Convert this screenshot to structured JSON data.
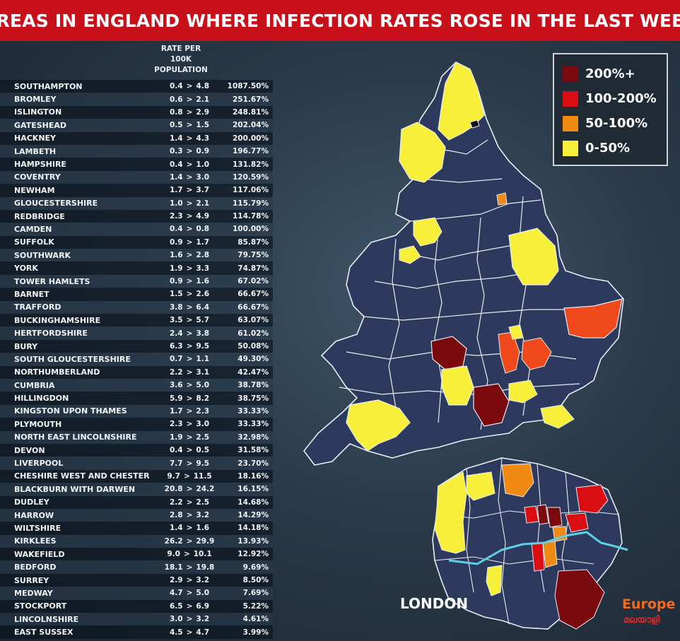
{
  "title": "AREAS IN ENGLAND WHERE INFECTION RATES ROSE IN THE LAST WEEK",
  "rate_header": [
    "RATE PER",
    "100K",
    "POPULATION"
  ],
  "rows": [
    {
      "area": "SOUTHAMPTON",
      "from": "0.4",
      "to": "4.8",
      "pct": "1087.50%"
    },
    {
      "area": "BROMLEY",
      "from": "0.6",
      "to": "2.1",
      "pct": "251.67%"
    },
    {
      "area": "ISLINGTON",
      "from": "0.8",
      "to": "2.9",
      "pct": "248.81%"
    },
    {
      "area": "GATESHEAD",
      "from": "0.5",
      "to": "1.5",
      "pct": "202.04%"
    },
    {
      "area": "HACKNEY",
      "from": "1.4",
      "to": "4.3",
      "pct": "200.00%"
    },
    {
      "area": "LAMBETH",
      "from": "0.3",
      "to": "0.9",
      "pct": "196.77%"
    },
    {
      "area": "HAMPSHIRE",
      "from": "0.4",
      "to": "1.0",
      "pct": "131.82%"
    },
    {
      "area": "COVENTRY",
      "from": "1.4",
      "to": "3.0",
      "pct": "120.59%"
    },
    {
      "area": "NEWHAM",
      "from": "1.7",
      "to": "3.7",
      "pct": "117.06%"
    },
    {
      "area": "GLOUCESTERSHIRE",
      "from": "1.0",
      "to": "2.1",
      "pct": "115.79%"
    },
    {
      "area": "REDBRIDGE",
      "from": "2.3",
      "to": "4.9",
      "pct": "114.78%"
    },
    {
      "area": "CAMDEN",
      "from": "0.4",
      "to": "0.8",
      "pct": "100.00%"
    },
    {
      "area": "SUFFOLK",
      "from": "0.9",
      "to": "1.7",
      "pct": "85.87%"
    },
    {
      "area": "SOUTHWARK",
      "from": "1.6",
      "to": "2.8",
      "pct": "79.75%"
    },
    {
      "area": "YORK",
      "from": "1.9",
      "to": "3.3",
      "pct": "74.87%"
    },
    {
      "area": "TOWER HAMLETS",
      "from": "0.9",
      "to": "1.6",
      "pct": "67.02%"
    },
    {
      "area": "BARNET",
      "from": "1.5",
      "to": "2.6",
      "pct": "66.67%"
    },
    {
      "area": "TRAFFORD",
      "from": "3.8",
      "to": "6.4",
      "pct": "66.67%"
    },
    {
      "area": "BUCKINGHAMSHIRE",
      "from": "3.5",
      "to": "5.7",
      "pct": "63.07%"
    },
    {
      "area": "HERTFORDSHIRE",
      "from": "2.4",
      "to": "3.8",
      "pct": "61.02%"
    },
    {
      "area": "BURY",
      "from": "6.3",
      "to": "9.5",
      "pct": "50.08%"
    },
    {
      "area": "SOUTH GLOUCESTERSHIRE",
      "from": "0.7",
      "to": "1.1",
      "pct": "49.30%"
    },
    {
      "area": "NORTHUMBERLAND",
      "from": "2.2",
      "to": "3.1",
      "pct": "42.47%"
    },
    {
      "area": "CUMBRIA",
      "from": "3.6",
      "to": "5.0",
      "pct": "38.78%"
    },
    {
      "area": "HILLINGDON",
      "from": "5.9",
      "to": "8.2",
      "pct": "38.75%"
    },
    {
      "area": "KINGSTON UPON THAMES",
      "from": "1.7",
      "to": "2.3",
      "pct": "33.33%"
    },
    {
      "area": "PLYMOUTH",
      "from": "2.3",
      "to": "3.0",
      "pct": "33.33%"
    },
    {
      "area": "NORTH EAST LINCOLNSHIRE",
      "from": "1.9",
      "to": "2.5",
      "pct": "32.98%"
    },
    {
      "area": "DEVON",
      "from": "0.4",
      "to": "0.5",
      "pct": "31.58%"
    },
    {
      "area": "LIVERPOOL",
      "from": "7.7",
      "to": "9.5",
      "pct": "23.70%"
    },
    {
      "area": "CHESHIRE WEST AND CHESTER",
      "from": "9.7",
      "to": "11.5",
      "pct": "18.16%"
    },
    {
      "area": "BLACKBURN WITH DARWEN",
      "from": "20.8",
      "to": "24.2",
      "pct": "16.15%"
    },
    {
      "area": "DUDLEY",
      "from": "2.2",
      "to": "2.5",
      "pct": "14.68%"
    },
    {
      "area": "HARROW",
      "from": "2.8",
      "to": "3.2",
      "pct": "14.29%"
    },
    {
      "area": "WILTSHIRE",
      "from": "1.4",
      "to": "1.6",
      "pct": "14.18%"
    },
    {
      "area": "KIRKLEES",
      "from": "26.2",
      "to": "29.9",
      "pct": "13.93%"
    },
    {
      "area": "WAKEFIELD",
      "from": "9.0",
      "to": "10.1",
      "pct": "12.92%"
    },
    {
      "area": "BEDFORD",
      "from": "18.1",
      "to": "19.8",
      "pct": "9.69%"
    },
    {
      "area": "SURREY",
      "from": "2.9",
      "to": "3.2",
      "pct": "8.50%"
    },
    {
      "area": "MEDWAY",
      "from": "4.7",
      "to": "5.0",
      "pct": "7.69%"
    },
    {
      "area": "STOCKPORT",
      "from": "6.5",
      "to": "6.9",
      "pct": "5.22%"
    },
    {
      "area": "LINCOLNSHIRE",
      "from": "3.0",
      "to": "3.2",
      "pct": "4.61%"
    },
    {
      "area": "EAST SUSSEX",
      "from": "4.5",
      "to": "4.7",
      "pct": "3.99%"
    }
  ],
  "arrow": ">",
  "legend": [
    {
      "label": "200%+",
      "color": "#7a0a0e"
    },
    {
      "label": "100-200%",
      "color": "#d80e12"
    },
    {
      "label": "50-100%",
      "color": "#f08a12"
    },
    {
      "label": "0-50%",
      "color": "#f7ef3a"
    }
  ],
  "colors": {
    "base_region": "#2d3a5e",
    "border": "#e8edf2",
    "title_bg": "#c8101a",
    "thames": "#5fd0e8"
  },
  "london_label": "LONDON",
  "logo": {
    "top": "Europe",
    "bottom": "മലയാളി"
  }
}
